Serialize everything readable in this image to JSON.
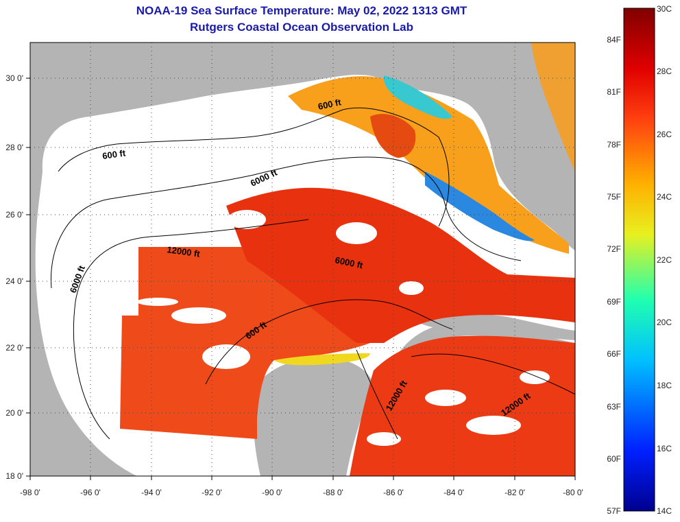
{
  "title": {
    "line1": "NOAA-19 Sea Surface Temperature:  May 02, 2022 1313 GMT",
    "line2": "Rutgers Coastal Ocean Observation Lab"
  },
  "map": {
    "lon_range": [
      -98,
      -80
    ],
    "lat_range": [
      18,
      31
    ],
    "lon_ticks": [
      "-98 0'",
      "-96 0'",
      "-94 0'",
      "-92 0'",
      "-90 0'",
      "-88 0'",
      "-86 0'",
      "-84 0'",
      "-82 0'",
      "-80 0'"
    ],
    "lat_ticks": [
      "30 0'",
      "28 0'",
      "26 0'",
      "24 0'",
      "22 0'",
      "20 0'",
      "18 0'"
    ],
    "contour_labels": [
      {
        "text": "600 ft"
      },
      {
        "text": "600 ft"
      },
      {
        "text": "6000 ft"
      },
      {
        "text": "12000 ft"
      },
      {
        "text": "6000 ft"
      },
      {
        "text": "6000 ft"
      },
      {
        "text": "600 ft"
      },
      {
        "text": "12000 ft"
      },
      {
        "text": "12000 ft"
      }
    ],
    "colors": {
      "land": "#b4b4b4",
      "nodata": "#ffffff",
      "title": "#1a1aa8"
    }
  },
  "colorbar": {
    "celsius_ticks": [
      "30C",
      "28C",
      "26C",
      "24C",
      "22C",
      "20C",
      "18C",
      "16C",
      "14C"
    ],
    "fahrenheit_ticks": [
      "84F",
      "81F",
      "78F",
      "75F",
      "72F",
      "69F",
      "66F",
      "63F",
      "60F",
      "57F"
    ],
    "range_c": [
      14,
      30
    ]
  }
}
